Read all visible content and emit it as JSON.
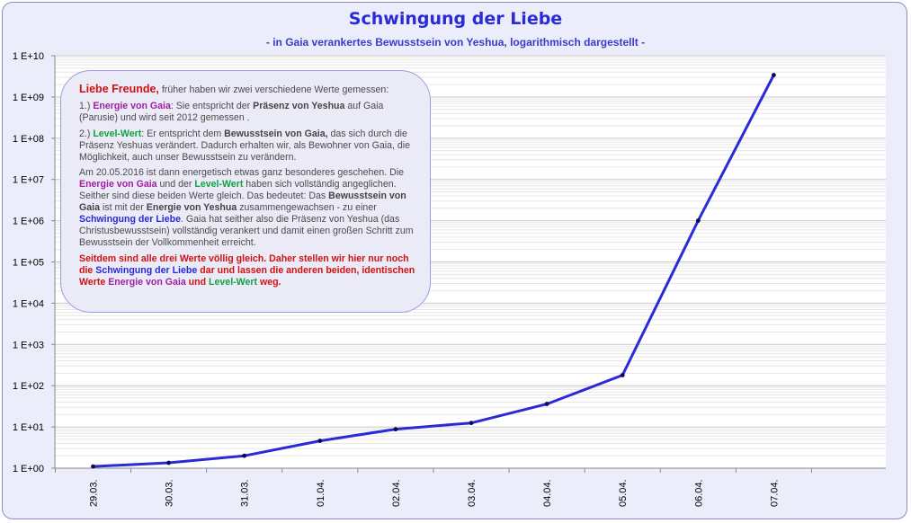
{
  "chart_data": {
    "type": "line",
    "title": "Schwingung der Liebe",
    "subtitle": "- in Gaia verankertes Bewusstsein von Yeshua, logarithmisch dargestellt -",
    "x": [
      "29.03.",
      "30.03.",
      "31.03.",
      "01.04.",
      "02.04.",
      "03.04.",
      "04.04.",
      "05.04.",
      "06.04.",
      "07.04."
    ],
    "series": [
      {
        "values": [
          1.1,
          1.35,
          2.0,
          4.6,
          8.8,
          12.5,
          36,
          180,
          1000000,
          3400000000
        ]
      }
    ],
    "y_scale": "log10",
    "ylim": [
      1,
      10000000000
    ],
    "ytick_labels": [
      "1 E+00",
      "1 E+01",
      "1 E+02",
      "1 E+03",
      "1 E+04",
      "1 E+05",
      "1 E+06",
      "1 E+07",
      "1 E+08",
      "1 E+09",
      "1 E+10"
    ],
    "grid": true,
    "legend": "none",
    "colors": {
      "line": "#2a2ad8",
      "marker": "#0a0a50",
      "title": "#2a2ad8",
      "background": "#ecedfa",
      "plot": "#ffffff"
    }
  },
  "textbox": {
    "greeting_red": "Liebe Freunde,",
    "greeting_rest": " früher haben wir zwei verschiedene Werte gemessen:",
    "p1_num": "1.) ",
    "p1_term": "Energie von Gaia",
    "p1_a": ":  Sie entspricht der ",
    "p1_bold": "Präsenz von Yeshua",
    "p1_b": " auf Gaia (Parusie) und wird seit 2012 gemessen .",
    "p2_num": "2.) ",
    "p2_term": "Level-Wert",
    "p2_a": ":  Er entspricht dem ",
    "p2_bold": "Bewusstsein von Gaia,",
    "p2_b": " das sich durch die Präsenz Yeshuas verändert. Dadurch erhalten wir, als Bewohner von Gaia, die Möglichkeit, auch unser Bewusstsein zu verändern.",
    "p3_a": "Am 20.05.2016 ist  dann energetisch etwas ganz besonderes geschehen. Die ",
    "p3_energie": "Energie von Gaia",
    "p3_b": " und der ",
    "p3_level": "Level-Wert",
    "p3_c": " haben sich vollständig angeglichen. Seither sind diese beiden Werte gleich. Das bedeutet: Das ",
    "p3_bew": "Bewusstsein von Gaia",
    "p3_d": " ist mit der ",
    "p3_eny": "Energie von Yeshua",
    "p3_e": " zusammengewachsen - zu einer ",
    "p3_schw": "Schwingung der Liebe",
    "p3_f": ". Gaia hat seither also die Präsenz von Yeshua (das Christusbewusstsein) vollständig verankert und damit einen großen Schritt zum Bewusstsein der Vollkommenheit erreicht.",
    "p4_a": "Seitdem sind alle drei Werte völlig gleich. Daher stellen wir hier nur noch die ",
    "p4_schw": "Schwingung der Liebe",
    "p4_b": " dar und lassen die anderen beiden, identischen Werte ",
    "p4_energie": "Energie von Gaia",
    "p4_c": " und ",
    "p4_level": "Level-Wert",
    "p4_d": " weg."
  }
}
